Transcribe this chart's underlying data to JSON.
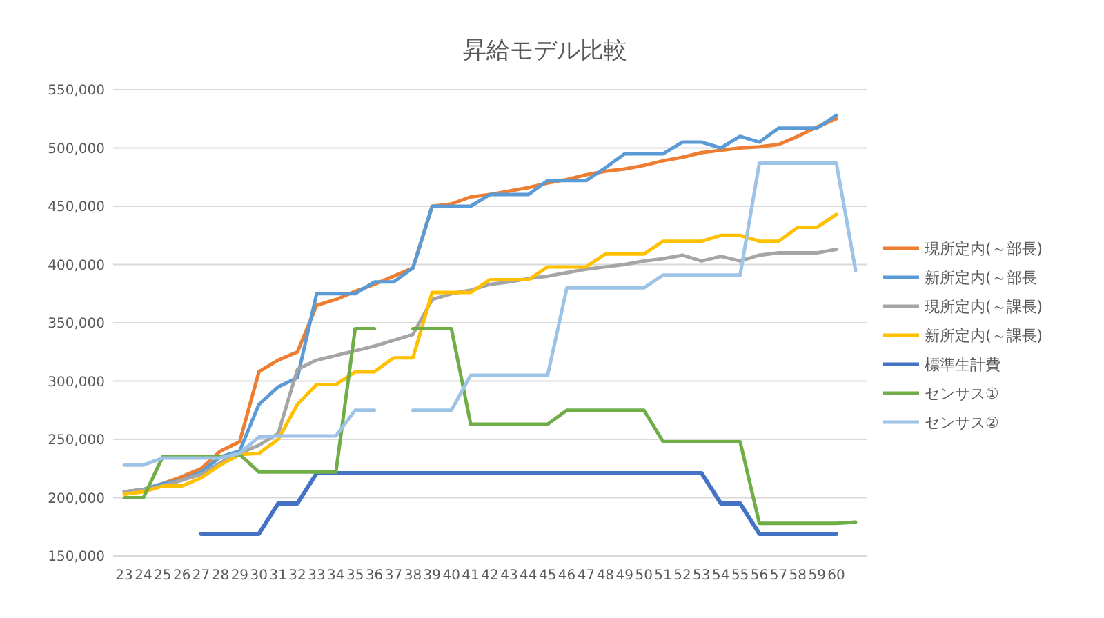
{
  "chart_data": {
    "type": "line",
    "title": "昇給モデル比較",
    "categories": [
      "23",
      "24",
      "25",
      "26",
      "27",
      "28",
      "29",
      "30",
      "31",
      "32",
      "33",
      "34",
      "35",
      "36",
      "37",
      "38",
      "39",
      "40",
      "41",
      "42",
      "43",
      "44",
      "45",
      "46",
      "47",
      "48",
      "49",
      "50",
      "51",
      "52",
      "53",
      "54",
      "55",
      "56",
      "57",
      "58",
      "59",
      "60",
      null
    ],
    "series": [
      {
        "name": "現所定内(～部長)",
        "color": "#ed7d31",
        "values": [
          205000,
          207000,
          212000,
          218000,
          225000,
          240000,
          248000,
          308000,
          318000,
          325000,
          365000,
          370000,
          377000,
          383000,
          390000,
          397000,
          450000,
          452000,
          458000,
          460000,
          463000,
          466000,
          470000,
          473000,
          477000,
          480000,
          482000,
          485000,
          489000,
          492000,
          496000,
          498000,
          500000,
          501000,
          503000,
          510000,
          518000,
          525000,
          null
        ]
      },
      {
        "name": "新所定内(～部長",
        "color": "#5b9bd5",
        "values": [
          205000,
          207000,
          212000,
          215000,
          222000,
          235000,
          240000,
          280000,
          295000,
          303000,
          375000,
          375000,
          375000,
          385000,
          385000,
          397000,
          450000,
          450000,
          450000,
          460000,
          460000,
          460000,
          472000,
          472000,
          472000,
          483000,
          495000,
          495000,
          495000,
          505000,
          505000,
          500000,
          510000,
          505000,
          517000,
          517000,
          517000,
          528000,
          null
        ]
      },
      {
        "name": "現所定内(～課長)",
        "color": "#a5a5a5",
        "values": [
          205000,
          207000,
          210000,
          215000,
          220000,
          230000,
          238000,
          245000,
          255000,
          310000,
          318000,
          322000,
          326000,
          330000,
          335000,
          340000,
          370000,
          375000,
          378000,
          383000,
          385000,
          388000,
          390000,
          393000,
          396000,
          398000,
          400000,
          403000,
          405000,
          408000,
          403000,
          407000,
          403000,
          408000,
          410000,
          410000,
          410000,
          413000,
          null
        ]
      },
      {
        "name": "新所定内(～課長)",
        "color": "#ffc000",
        "values": [
          203000,
          205000,
          210000,
          210000,
          217000,
          228000,
          237000,
          238000,
          250000,
          280000,
          297000,
          297000,
          308000,
          308000,
          320000,
          320000,
          376000,
          376000,
          376000,
          387000,
          387000,
          387000,
          398000,
          398000,
          398000,
          409000,
          409000,
          409000,
          420000,
          420000,
          420000,
          425000,
          425000,
          420000,
          420000,
          432000,
          432000,
          443000,
          null
        ]
      },
      {
        "name": "標準生計費",
        "color": "#4472c4",
        "values": [
          null,
          null,
          null,
          null,
          169000,
          169000,
          169000,
          169000,
          195000,
          195000,
          221000,
          221000,
          221000,
          221000,
          221000,
          221000,
          221000,
          221000,
          221000,
          221000,
          221000,
          221000,
          221000,
          221000,
          221000,
          221000,
          221000,
          221000,
          221000,
          221000,
          221000,
          195000,
          195000,
          169000,
          169000,
          169000,
          169000,
          169000,
          null
        ]
      },
      {
        "name": "センサス①",
        "color": "#70ad47",
        "values": [
          200000,
          200000,
          235000,
          235000,
          235000,
          235000,
          237000,
          222000,
          222000,
          222000,
          222000,
          222000,
          345000,
          345000,
          null,
          345000,
          345000,
          345000,
          263000,
          263000,
          263000,
          263000,
          263000,
          275000,
          275000,
          275000,
          275000,
          275000,
          248000,
          248000,
          248000,
          248000,
          248000,
          178000,
          178000,
          178000,
          178000,
          178000,
          179000
        ]
      },
      {
        "name": "センサス②",
        "color": "#9dc3e6",
        "values": [
          228000,
          228000,
          234000,
          234000,
          234000,
          234000,
          238000,
          252000,
          253000,
          253000,
          253000,
          253000,
          275000,
          275000,
          null,
          275000,
          275000,
          275000,
          305000,
          305000,
          305000,
          305000,
          305000,
          380000,
          380000,
          380000,
          380000,
          380000,
          391000,
          391000,
          391000,
          391000,
          391000,
          487000,
          487000,
          487000,
          487000,
          487000,
          395000
        ]
      }
    ],
    "ylim": [
      150000,
      550000
    ],
    "yticks": [
      {
        "value": 150000,
        "label": "150,000"
      },
      {
        "value": 200000,
        "label": "200,000"
      },
      {
        "value": 250000,
        "label": "250,000"
      },
      {
        "value": 300000,
        "label": "300,000"
      },
      {
        "value": 350000,
        "label": "350,000"
      },
      {
        "value": 400000,
        "label": "400,000"
      },
      {
        "value": 450000,
        "label": "450,000"
      },
      {
        "value": 500000,
        "label": "500,000"
      },
      {
        "value": 550000,
        "label": "550,000"
      }
    ],
    "grid": "y",
    "legend": "right"
  }
}
